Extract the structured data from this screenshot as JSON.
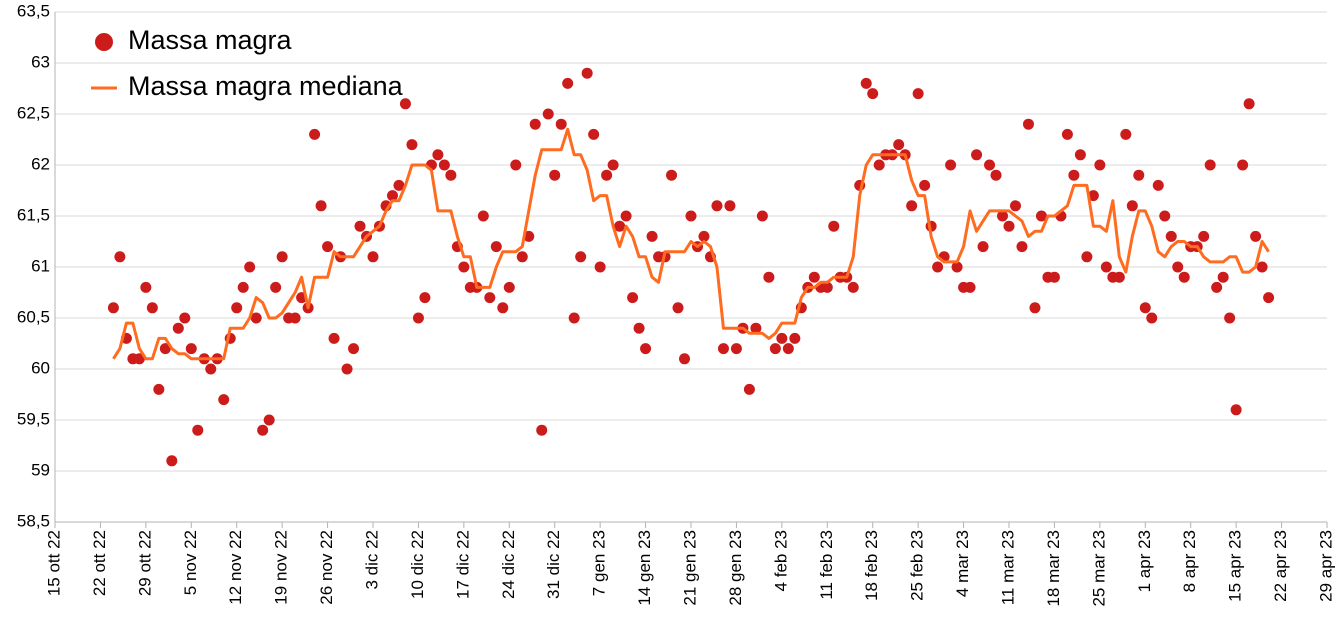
{
  "chart_data": {
    "type": "scatter",
    "x": [
      "2022-10-24",
      "2022-10-25",
      "2022-10-26",
      "2022-10-27",
      "2022-10-28",
      "2022-10-29",
      "2022-10-30",
      "2022-10-31",
      "2022-11-01",
      "2022-11-02",
      "2022-11-03",
      "2022-11-04",
      "2022-11-05",
      "2022-11-06",
      "2022-11-07",
      "2022-11-08",
      "2022-11-09",
      "2022-11-10",
      "2022-11-11",
      "2022-11-12",
      "2022-11-13",
      "2022-11-14",
      "2022-11-15",
      "2022-11-16",
      "2022-11-17",
      "2022-11-18",
      "2022-11-19",
      "2022-11-20",
      "2022-11-21",
      "2022-11-22",
      "2022-11-23",
      "2022-11-24",
      "2022-11-25",
      "2022-11-26",
      "2022-11-27",
      "2022-11-28",
      "2022-11-29",
      "2022-11-30",
      "2022-12-01",
      "2022-12-02",
      "2022-12-03",
      "2022-12-04",
      "2022-12-05",
      "2022-12-06",
      "2022-12-07",
      "2022-12-08",
      "2022-12-09",
      "2022-12-10",
      "2022-12-11",
      "2022-12-12",
      "2022-12-13",
      "2022-12-14",
      "2022-12-15",
      "2022-12-16",
      "2022-12-17",
      "2022-12-18",
      "2022-12-19",
      "2022-12-20",
      "2022-12-21",
      "2022-12-22",
      "2022-12-23",
      "2022-12-24",
      "2022-12-25",
      "2022-12-26",
      "2022-12-27",
      "2022-12-28",
      "2022-12-29",
      "2022-12-30",
      "2022-12-31",
      "2023-01-01",
      "2023-01-02",
      "2023-01-03",
      "2023-01-04",
      "2023-01-05",
      "2023-01-06",
      "2023-01-07",
      "2023-01-08",
      "2023-01-09",
      "2023-01-10",
      "2023-01-11",
      "2023-01-12",
      "2023-01-13",
      "2023-01-14",
      "2023-01-15",
      "2023-01-16",
      "2023-01-17",
      "2023-01-18",
      "2023-01-19",
      "2023-01-20",
      "2023-01-21",
      "2023-01-22",
      "2023-01-23",
      "2023-01-24",
      "2023-01-25",
      "2023-01-26",
      "2023-01-27",
      "2023-01-28",
      "2023-01-29",
      "2023-01-30",
      "2023-01-31",
      "2023-02-01",
      "2023-02-02",
      "2023-02-03",
      "2023-02-04",
      "2023-02-05",
      "2023-02-06",
      "2023-02-07",
      "2023-02-08",
      "2023-02-09",
      "2023-02-10",
      "2023-02-11",
      "2023-02-12",
      "2023-02-13",
      "2023-02-14",
      "2023-02-15",
      "2023-02-16",
      "2023-02-17",
      "2023-02-18",
      "2023-02-19",
      "2023-02-20",
      "2023-02-21",
      "2023-02-22",
      "2023-02-23",
      "2023-02-24",
      "2023-02-25",
      "2023-02-26",
      "2023-02-27",
      "2023-02-28",
      "2023-03-01",
      "2023-03-02",
      "2023-03-03",
      "2023-03-04",
      "2023-03-05",
      "2023-03-06",
      "2023-03-07",
      "2023-03-08",
      "2023-03-09",
      "2023-03-10",
      "2023-03-11",
      "2023-03-12",
      "2023-03-13",
      "2023-03-14",
      "2023-03-15",
      "2023-03-16",
      "2023-03-17",
      "2023-03-18",
      "2023-03-19",
      "2023-03-20",
      "2023-03-21",
      "2023-03-22",
      "2023-03-23",
      "2023-03-24",
      "2023-03-25",
      "2023-03-26",
      "2023-03-27",
      "2023-03-28",
      "2023-03-29",
      "2023-03-30",
      "2023-03-31",
      "2023-04-01",
      "2023-04-02",
      "2023-04-03",
      "2023-04-04",
      "2023-04-05",
      "2023-04-06",
      "2023-04-07",
      "2023-04-08",
      "2023-04-09",
      "2023-04-10",
      "2023-04-11",
      "2023-04-12",
      "2023-04-13",
      "2023-04-14",
      "2023-04-15",
      "2023-04-16",
      "2023-04-17",
      "2023-04-18",
      "2023-04-19",
      "2023-04-20"
    ],
    "series": [
      {
        "name": "Massa magra",
        "type": "scatter",
        "color": "#cc1b1b",
        "values": [
          60.6,
          61.1,
          60.3,
          60.1,
          60.1,
          60.8,
          60.6,
          59.8,
          60.2,
          59.1,
          60.4,
          60.5,
          60.2,
          59.4,
          60.1,
          60.0,
          60.1,
          59.7,
          60.3,
          60.6,
          60.8,
          61.0,
          60.5,
          59.4,
          59.5,
          60.8,
          61.1,
          60.5,
          60.5,
          60.7,
          60.6,
          62.3,
          61.6,
          61.2,
          60.3,
          61.1,
          60.0,
          60.2,
          61.4,
          61.3,
          61.1,
          61.4,
          61.6,
          61.7,
          61.8,
          62.6,
          62.2,
          60.5,
          60.7,
          62.0,
          62.1,
          62.0,
          61.9,
          61.2,
          61.0,
          60.8,
          60.8,
          61.5,
          60.7,
          61.2,
          60.6,
          60.8,
          62.0,
          61.1,
          61.3,
          62.4,
          59.4,
          62.5,
          61.9,
          62.4,
          62.8,
          60.5,
          61.1,
          62.9,
          62.3,
          61.0,
          61.9,
          62.0,
          61.4,
          61.5,
          60.7,
          60.4,
          60.2,
          61.3,
          61.1,
          61.1,
          61.9,
          60.6,
          60.1,
          61.5,
          61.2,
          61.3,
          61.1,
          61.6,
          60.2,
          61.6,
          60.2,
          60.4,
          59.8,
          60.4,
          61.5,
          60.9,
          60.2,
          60.3,
          60.2,
          60.3,
          60.6,
          60.8,
          60.9,
          60.8,
          60.8,
          61.4,
          60.9,
          60.9,
          60.8,
          61.8,
          62.8,
          62.7,
          62.0,
          62.1,
          62.1,
          62.2,
          62.1,
          61.6,
          62.7,
          61.8,
          61.4,
          61.0,
          61.1,
          62.0,
          61.0,
          60.8,
          60.8,
          62.1,
          61.2,
          62.0,
          61.9,
          61.5,
          61.4,
          61.6,
          61.2,
          62.4,
          60.6,
          61.5,
          60.9,
          60.9,
          61.5,
          62.3,
          61.9,
          62.1,
          61.1,
          61.7,
          62.0,
          61.0,
          60.9,
          60.9,
          62.3,
          61.6,
          61.9,
          60.6,
          60.5,
          61.8,
          61.5,
          61.3,
          61.0,
          60.9,
          61.2,
          61.2,
          61.3,
          62.0,
          60.8,
          60.9,
          60.5,
          59.6,
          62.0,
          62.6,
          61.3,
          61.0,
          60.7
        ]
      },
      {
        "name": "Massa magra mediana",
        "type": "line",
        "color": "#ff6b1f",
        "values": [
          60.1,
          60.2,
          60.45,
          60.45,
          60.2,
          60.1,
          60.1,
          60.3,
          60.3,
          60.2,
          60.15,
          60.15,
          60.1,
          60.1,
          60.1,
          60.1,
          60.1,
          60.1,
          60.4,
          60.4,
          60.4,
          60.5,
          60.7,
          60.65,
          60.5,
          60.5,
          60.55,
          60.65,
          60.75,
          60.9,
          60.6,
          60.9,
          60.9,
          60.9,
          61.15,
          61.1,
          61.1,
          61.1,
          61.2,
          61.3,
          61.35,
          61.4,
          61.55,
          61.65,
          61.65,
          61.8,
          62.0,
          62.0,
          62.0,
          61.95,
          61.55,
          61.55,
          61.55,
          61.3,
          61.1,
          61.1,
          60.8,
          60.8,
          60.8,
          61.0,
          61.15,
          61.15,
          61.15,
          61.2,
          61.55,
          61.9,
          62.15,
          62.15,
          62.15,
          62.15,
          62.35,
          62.1,
          62.1,
          61.95,
          61.65,
          61.7,
          61.7,
          61.4,
          61.2,
          61.4,
          61.3,
          61.1,
          61.1,
          60.9,
          60.85,
          61.15,
          61.15,
          61.15,
          61.15,
          61.25,
          61.2,
          61.25,
          61.2,
          61.0,
          60.4,
          60.4,
          60.4,
          60.4,
          60.35,
          60.35,
          60.35,
          60.3,
          60.35,
          60.45,
          60.45,
          60.45,
          60.7,
          60.8,
          60.8,
          60.85,
          60.85,
          60.9,
          60.9,
          60.9,
          61.1,
          61.7,
          62.0,
          62.1,
          62.1,
          62.1,
          62.1,
          62.1,
          62.1,
          61.85,
          61.7,
          61.7,
          61.3,
          61.1,
          61.05,
          61.05,
          61.05,
          61.2,
          61.55,
          61.35,
          61.45,
          61.55,
          61.55,
          61.55,
          61.55,
          61.5,
          61.45,
          61.3,
          61.35,
          61.35,
          61.5,
          61.5,
          61.55,
          61.6,
          61.8,
          61.8,
          61.8,
          61.4,
          61.4,
          61.35,
          61.65,
          61.1,
          60.95,
          61.3,
          61.55,
          61.55,
          61.4,
          61.15,
          61.1,
          61.2,
          61.25,
          61.25,
          61.2,
          61.2,
          61.1,
          61.05,
          61.05,
          61.05,
          61.1,
          61.1,
          60.95,
          60.95,
          61.0,
          61.25,
          61.15
        ]
      }
    ],
    "xlim": [
      "2022-10-15",
      "2023-04-29"
    ],
    "xticks": [
      {
        "value": "2022-10-15",
        "label": "15 ott 22"
      },
      {
        "value": "2022-10-22",
        "label": "22 ott 22"
      },
      {
        "value": "2022-10-29",
        "label": "29 ott 22"
      },
      {
        "value": "2022-11-05",
        "label": "5 nov 22"
      },
      {
        "value": "2022-11-12",
        "label": "12 nov 22"
      },
      {
        "value": "2022-11-19",
        "label": "19 nov 22"
      },
      {
        "value": "2022-11-26",
        "label": "26 nov 22"
      },
      {
        "value": "2022-12-03",
        "label": "3 dic 22"
      },
      {
        "value": "2022-12-10",
        "label": "10 dic 22"
      },
      {
        "value": "2022-12-17",
        "label": "17 dic 22"
      },
      {
        "value": "2022-12-24",
        "label": "24 dic 22"
      },
      {
        "value": "2022-12-31",
        "label": "31 dic 22"
      },
      {
        "value": "2023-01-07",
        "label": "7 gen 23"
      },
      {
        "value": "2023-01-14",
        "label": "14 gen 23"
      },
      {
        "value": "2023-01-21",
        "label": "21 gen 23"
      },
      {
        "value": "2023-01-28",
        "label": "28 gen 23"
      },
      {
        "value": "2023-02-04",
        "label": "4 feb 23"
      },
      {
        "value": "2023-02-11",
        "label": "11 feb 23"
      },
      {
        "value": "2023-02-18",
        "label": "18 feb 23"
      },
      {
        "value": "2023-02-25",
        "label": "25 feb 23"
      },
      {
        "value": "2023-03-04",
        "label": "4 mar 23"
      },
      {
        "value": "2023-03-11",
        "label": "11 mar 23"
      },
      {
        "value": "2023-03-18",
        "label": "18 mar 23"
      },
      {
        "value": "2023-03-25",
        "label": "25 mar 23"
      },
      {
        "value": "2023-04-01",
        "label": "1 apr 23"
      },
      {
        "value": "2023-04-08",
        "label": "8 apr 23"
      },
      {
        "value": "2023-04-15",
        "label": "15 apr 23"
      },
      {
        "value": "2023-04-22",
        "label": "22 apr 23"
      },
      {
        "value": "2023-04-29",
        "label": "29 apr 23"
      }
    ],
    "ylim": [
      58.5,
      63.5
    ],
    "yticks": [
      {
        "value": 58.5,
        "label": "58,5"
      },
      59,
      {
        "value": 59.5,
        "label": "59,5"
      },
      60,
      {
        "value": 60.5,
        "label": "60,5"
      },
      61,
      {
        "value": 61.5,
        "label": "61,5"
      },
      62,
      {
        "value": 62.5,
        "label": "62,5"
      },
      63,
      {
        "value": 63.5,
        "label": "63,5"
      }
    ],
    "grid": true,
    "legend": "top-left"
  }
}
